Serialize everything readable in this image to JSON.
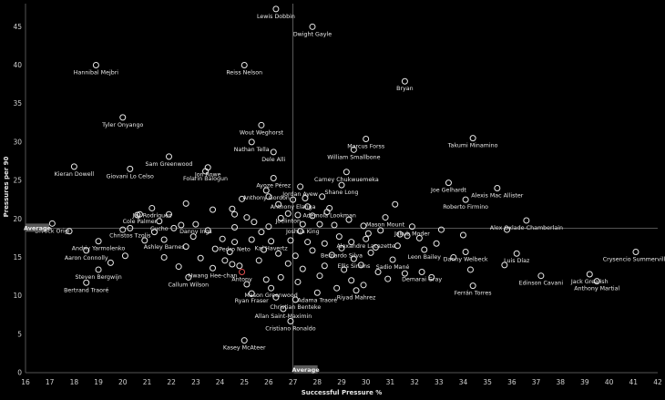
{
  "chart_data": {
    "type": "scatter",
    "title": "",
    "xlabel": "Successful Pressure %",
    "ylabel": "Pressures per 90",
    "xlim": [
      16,
      42
    ],
    "ylim": [
      0,
      48
    ],
    "x_ticks": [
      16,
      17,
      18,
      19,
      20,
      21,
      22,
      23,
      24,
      25,
      26,
      27,
      28,
      29,
      30,
      31,
      32,
      33,
      34,
      35,
      36,
      37,
      38,
      39,
      40,
      41,
      42
    ],
    "y_ticks": [
      0,
      5,
      10,
      15,
      20,
      25,
      30,
      35,
      40,
      45
    ],
    "grid": false,
    "average": {
      "x": 27.0,
      "y": 18.8,
      "x_label": "Average",
      "y_label": "Average"
    },
    "highlight_color": "#e05050",
    "points": [
      {
        "name": "Lewis Dobbin",
        "x": 26.3,
        "y": 47.3,
        "label": true
      },
      {
        "name": "Dwight Gayle",
        "x": 27.8,
        "y": 45.0,
        "label": true
      },
      {
        "name": "Hannibal Mejbri",
        "x": 18.9,
        "y": 40.0,
        "label": true
      },
      {
        "name": "Reiss Nelson",
        "x": 25.0,
        "y": 40.0,
        "label": true
      },
      {
        "name": "Bryan",
        "x": 31.6,
        "y": 37.9,
        "label": true
      },
      {
        "name": "Tyler Onyango",
        "x": 20.0,
        "y": 33.2,
        "label": true
      },
      {
        "name": "Wout Weghorst",
        "x": 25.7,
        "y": 32.2,
        "label": true
      },
      {
        "name": "Marcus Forss",
        "x": 30.0,
        "y": 30.4,
        "label": true
      },
      {
        "name": "Takumi Minamino",
        "x": 34.4,
        "y": 30.5,
        "label": true
      },
      {
        "name": "Nathan Tella",
        "x": 25.3,
        "y": 30.0,
        "label": true
      },
      {
        "name": "William Smallbone",
        "x": 29.5,
        "y": 29.0,
        "label": true
      },
      {
        "name": "Dele Alli",
        "x": 26.2,
        "y": 28.7,
        "label": true
      },
      {
        "name": "Sam Greenwood",
        "x": 21.9,
        "y": 28.1,
        "label": true
      },
      {
        "name": "Kieran Dowell",
        "x": 18.0,
        "y": 26.8,
        "label": true
      },
      {
        "name": "Jon Rowe",
        "x": 23.5,
        "y": 26.7,
        "label": true
      },
      {
        "name": "Giovani Lo Celso",
        "x": 20.3,
        "y": 26.5,
        "label": true
      },
      {
        "name": "Carney Chukwuemeka",
        "x": 29.2,
        "y": 26.1,
        "label": true
      },
      {
        "name": "Folarin Balogun",
        "x": 23.4,
        "y": 26.2,
        "label": true
      },
      {
        "name": "Ayoze Pérez",
        "x": 26.2,
        "y": 25.3,
        "label": true
      },
      {
        "name": "Shane Long",
        "x": 29.0,
        "y": 24.4,
        "label": true
      },
      {
        "name": "Joe Gelhardt",
        "x": 33.4,
        "y": 24.7,
        "label": true
      },
      {
        "name": "Alexis Mac Allister",
        "x": 35.4,
        "y": 24.0,
        "label": true
      },
      {
        "name": "Jordan Ayew",
        "x": 27.3,
        "y": 24.2,
        "label": true
      },
      {
        "name": "Anthony Gordon",
        "x": 25.9,
        "y": 23.7,
        "label": true
      },
      {
        "name": "Anthony Elanga",
        "x": 27.0,
        "y": 22.5,
        "label": true
      },
      {
        "name": "Roberto Firmino",
        "x": 34.1,
        "y": 22.5,
        "label": true
      },
      {
        "name": "Jay Rodríguez",
        "x": 21.2,
        "y": 21.4,
        "label": true
      },
      {
        "name": "Ademola Lookman",
        "x": 28.5,
        "y": 21.4,
        "label": true
      },
      {
        "name": "Cole Palmer",
        "x": 20.7,
        "y": 20.6,
        "label": true
      },
      {
        "name": "Joelinton",
        "x": 26.8,
        "y": 20.7,
        "label": true
      },
      {
        "name": "Mason Mount",
        "x": 30.8,
        "y": 20.2,
        "label": true
      },
      {
        "name": "Cucho",
        "x": 21.5,
        "y": 19.7,
        "label": true
      },
      {
        "name": "Joshua King",
        "x": 27.4,
        "y": 19.3,
        "label": true
      },
      {
        "name": "Jakub Moder",
        "x": 31.9,
        "y": 19.0,
        "label": true
      },
      {
        "name": "Divock Origi",
        "x": 17.1,
        "y": 19.4,
        "label": true
      },
      {
        "name": "Danny Ings",
        "x": 23.0,
        "y": 19.3,
        "label": true
      },
      {
        "name": "Christos Tzolis",
        "x": 20.3,
        "y": 18.8,
        "label": true
      },
      {
        "name": "Alex Oxlade-Chamberlain",
        "x": 36.6,
        "y": 19.8,
        "label": true
      },
      {
        "name": "Alexandre Lacazette",
        "x": 30.0,
        "y": 17.4,
        "label": true
      },
      {
        "name": "Andriy Yarmolenko",
        "x": 19.0,
        "y": 17.1,
        "label": true
      },
      {
        "name": "Ashley Barnes",
        "x": 21.7,
        "y": 17.3,
        "label": true
      },
      {
        "name": "Pedro Neto",
        "x": 24.6,
        "y": 17.0,
        "label": true
      },
      {
        "name": "Kai Havertz",
        "x": 26.1,
        "y": 17.1,
        "label": true
      },
      {
        "name": "Bernardo Silva",
        "x": 29.0,
        "y": 16.2,
        "label": true
      },
      {
        "name": "Leon Bailey",
        "x": 32.4,
        "y": 16.0,
        "label": true
      },
      {
        "name": "Aaron Connolly",
        "x": 18.5,
        "y": 15.9,
        "label": true
      },
      {
        "name": "Danny Welbeck",
        "x": 34.1,
        "y": 15.7,
        "label": true
      },
      {
        "name": "Luis Díaz",
        "x": 36.2,
        "y": 15.5,
        "label": true
      },
      {
        "name": "Crysencio Summerville",
        "x": 41.1,
        "y": 15.7,
        "label": true
      },
      {
        "name": "Ellis Simms",
        "x": 29.5,
        "y": 14.8,
        "label": true
      },
      {
        "name": "Sadio Mané",
        "x": 31.1,
        "y": 14.7,
        "label": true
      },
      {
        "name": "Hwang Hee-chan",
        "x": 23.7,
        "y": 13.6,
        "label": true
      },
      {
        "name": "Antony",
        "x": 24.9,
        "y": 13.1,
        "label": true,
        "highlight": true
      },
      {
        "name": "Steven Bergwijn",
        "x": 19.0,
        "y": 13.4,
        "label": true
      },
      {
        "name": "Jack Grealish",
        "x": 39.2,
        "y": 12.8,
        "label": true
      },
      {
        "name": "Demarai Gray",
        "x": 32.3,
        "y": 13.1,
        "label": true
      },
      {
        "name": "Callum Wilson",
        "x": 22.7,
        "y": 12.4,
        "label": true
      },
      {
        "name": "Edinson Cavani",
        "x": 37.2,
        "y": 12.6,
        "label": true
      },
      {
        "name": "Anthony Martial",
        "x": 39.5,
        "y": 11.9,
        "label": true
      },
      {
        "name": "Bertrand Traoré",
        "x": 18.5,
        "y": 11.7,
        "label": true
      },
      {
        "name": "Ferrán Torres",
        "x": 34.4,
        "y": 11.3,
        "label": true
      },
      {
        "name": "Mason Greenwood",
        "x": 26.1,
        "y": 11.0,
        "label": true
      },
      {
        "name": "Riyad Mahrez",
        "x": 29.6,
        "y": 10.7,
        "label": true
      },
      {
        "name": "Adama Traoré",
        "x": 28.0,
        "y": 10.4,
        "label": true
      },
      {
        "name": "Ryan Fraser",
        "x": 25.3,
        "y": 10.3,
        "label": true
      },
      {
        "name": "Christian Benteke",
        "x": 27.1,
        "y": 9.5,
        "label": true
      },
      {
        "name": "Allan Saint-Maximin",
        "x": 26.6,
        "y": 8.3,
        "label": true
      },
      {
        "name": "Cristiano Ronaldo",
        "x": 26.9,
        "y": 6.7,
        "label": true
      },
      {
        "name": "Kasey McAteer",
        "x": 25.0,
        "y": 4.2,
        "label": true
      },
      {
        "name": "",
        "x": 20.6,
        "y": 20.5,
        "label": false
      },
      {
        "name": "",
        "x": 21.9,
        "y": 20.6,
        "label": false
      },
      {
        "name": "",
        "x": 22.4,
        "y": 19.2,
        "label": false
      },
      {
        "name": "",
        "x": 23.7,
        "y": 21.2,
        "label": false
      },
      {
        "name": "",
        "x": 24.5,
        "y": 21.3,
        "label": false
      },
      {
        "name": "",
        "x": 24.6,
        "y": 20.6,
        "label": false
      },
      {
        "name": "",
        "x": 25.1,
        "y": 20.2,
        "label": false
      },
      {
        "name": "",
        "x": 25.4,
        "y": 19.6,
        "label": false
      },
      {
        "name": "",
        "x": 25.7,
        "y": 18.3,
        "label": false
      },
      {
        "name": "",
        "x": 26.0,
        "y": 19.0,
        "label": false
      },
      {
        "name": "",
        "x": 26.4,
        "y": 21.9,
        "label": false
      },
      {
        "name": "",
        "x": 26.5,
        "y": 20.1,
        "label": false
      },
      {
        "name": "",
        "x": 27.2,
        "y": 20.5,
        "label": false
      },
      {
        "name": "",
        "x": 27.6,
        "y": 21.6,
        "label": false
      },
      {
        "name": "",
        "x": 27.8,
        "y": 20.4,
        "label": false
      },
      {
        "name": "",
        "x": 28.1,
        "y": 19.3,
        "label": false
      },
      {
        "name": "",
        "x": 28.4,
        "y": 20.9,
        "label": false
      },
      {
        "name": "",
        "x": 28.7,
        "y": 19.2,
        "label": false
      },
      {
        "name": "",
        "x": 29.3,
        "y": 19.9,
        "label": false
      },
      {
        "name": "",
        "x": 29.9,
        "y": 19.1,
        "label": false
      },
      {
        "name": "",
        "x": 30.1,
        "y": 18.1,
        "label": false
      },
      {
        "name": "",
        "x": 30.6,
        "y": 18.5,
        "label": false
      },
      {
        "name": "",
        "x": 31.4,
        "y": 18.0,
        "label": false
      },
      {
        "name": "",
        "x": 31.7,
        "y": 17.8,
        "label": false
      },
      {
        "name": "",
        "x": 32.2,
        "y": 17.5,
        "label": false
      },
      {
        "name": "",
        "x": 33.1,
        "y": 18.6,
        "label": false
      },
      {
        "name": "",
        "x": 34.0,
        "y": 17.9,
        "label": false
      },
      {
        "name": "",
        "x": 35.8,
        "y": 18.6,
        "label": false
      },
      {
        "name": "",
        "x": 17.8,
        "y": 18.4,
        "label": false
      },
      {
        "name": "",
        "x": 20.0,
        "y": 18.6,
        "label": false
      },
      {
        "name": "",
        "x": 21.3,
        "y": 18.3,
        "label": false
      },
      {
        "name": "",
        "x": 22.1,
        "y": 18.8,
        "label": false
      },
      {
        "name": "",
        "x": 22.9,
        "y": 17.7,
        "label": false
      },
      {
        "name": "",
        "x": 23.5,
        "y": 18.5,
        "label": false
      },
      {
        "name": "",
        "x": 24.1,
        "y": 17.4,
        "label": false
      },
      {
        "name": "",
        "x": 24.6,
        "y": 18.9,
        "label": false
      },
      {
        "name": "",
        "x": 25.3,
        "y": 17.3,
        "label": false
      },
      {
        "name": "",
        "x": 26.9,
        "y": 17.2,
        "label": false
      },
      {
        "name": "",
        "x": 27.3,
        "y": 18.4,
        "label": false
      },
      {
        "name": "",
        "x": 27.6,
        "y": 17.0,
        "label": false
      },
      {
        "name": "",
        "x": 28.3,
        "y": 16.8,
        "label": false
      },
      {
        "name": "",
        "x": 28.9,
        "y": 17.7,
        "label": false
      },
      {
        "name": "",
        "x": 29.4,
        "y": 17.0,
        "label": false
      },
      {
        "name": "",
        "x": 30.4,
        "y": 16.3,
        "label": false
      },
      {
        "name": "",
        "x": 20.9,
        "y": 17.2,
        "label": false
      },
      {
        "name": "",
        "x": 22.6,
        "y": 16.4,
        "label": false
      },
      {
        "name": "",
        "x": 23.8,
        "y": 16.1,
        "label": false
      },
      {
        "name": "",
        "x": 24.4,
        "y": 15.7,
        "label": false
      },
      {
        "name": "",
        "x": 25.8,
        "y": 16.0,
        "label": false
      },
      {
        "name": "",
        "x": 26.4,
        "y": 15.5,
        "label": false
      },
      {
        "name": "",
        "x": 27.1,
        "y": 15.2,
        "label": false
      },
      {
        "name": "",
        "x": 27.8,
        "y": 15.9,
        "label": false
      },
      {
        "name": "",
        "x": 28.6,
        "y": 15.3,
        "label": false
      },
      {
        "name": "",
        "x": 21.7,
        "y": 15.0,
        "label": false
      },
      {
        "name": "",
        "x": 24.2,
        "y": 14.6,
        "label": false
      },
      {
        "name": "",
        "x": 24.5,
        "y": 14.1,
        "label": false
      },
      {
        "name": "",
        "x": 24.8,
        "y": 13.9,
        "label": false
      },
      {
        "name": "",
        "x": 25.6,
        "y": 14.6,
        "label": false
      },
      {
        "name": "",
        "x": 26.8,
        "y": 14.2,
        "label": false
      },
      {
        "name": "",
        "x": 27.4,
        "y": 13.5,
        "label": false
      },
      {
        "name": "",
        "x": 28.3,
        "y": 13.9,
        "label": false
      },
      {
        "name": "",
        "x": 29.1,
        "y": 13.4,
        "label": false
      },
      {
        "name": "",
        "x": 29.8,
        "y": 14.0,
        "label": false
      },
      {
        "name": "",
        "x": 30.5,
        "y": 13.1,
        "label": false
      },
      {
        "name": "",
        "x": 30.9,
        "y": 12.2,
        "label": false
      },
      {
        "name": "",
        "x": 29.4,
        "y": 12.0,
        "label": false
      },
      {
        "name": "",
        "x": 28.1,
        "y": 12.6,
        "label": false
      },
      {
        "name": "",
        "x": 26.5,
        "y": 12.4,
        "label": false
      },
      {
        "name": "",
        "x": 25.9,
        "y": 12.1,
        "label": false
      },
      {
        "name": "",
        "x": 25.1,
        "y": 11.5,
        "label": false
      },
      {
        "name": "",
        "x": 27.2,
        "y": 11.8,
        "label": false
      },
      {
        "name": "",
        "x": 29.9,
        "y": 11.4,
        "label": false
      },
      {
        "name": "",
        "x": 32.7,
        "y": 12.4,
        "label": false
      },
      {
        "name": "",
        "x": 34.3,
        "y": 13.4,
        "label": false
      },
      {
        "name": "",
        "x": 35.7,
        "y": 14.0,
        "label": false
      },
      {
        "name": "",
        "x": 31.6,
        "y": 12.9,
        "label": false
      },
      {
        "name": "",
        "x": 28.8,
        "y": 11.0,
        "label": false
      },
      {
        "name": "",
        "x": 26.3,
        "y": 9.8,
        "label": false
      },
      {
        "name": "",
        "x": 20.1,
        "y": 15.2,
        "label": false
      },
      {
        "name": "",
        "x": 19.5,
        "y": 14.3,
        "label": false
      },
      {
        "name": "",
        "x": 22.3,
        "y": 13.8,
        "label": false
      },
      {
        "name": "",
        "x": 23.2,
        "y": 14.9,
        "label": false
      },
      {
        "name": "",
        "x": 30.2,
        "y": 15.6,
        "label": false
      },
      {
        "name": "",
        "x": 31.3,
        "y": 16.5,
        "label": false
      },
      {
        "name": "",
        "x": 32.9,
        "y": 16.8,
        "label": false
      },
      {
        "name": "",
        "x": 33.6,
        "y": 15.0,
        "label": false
      },
      {
        "name": "",
        "x": 26.0,
        "y": 22.9,
        "label": false
      },
      {
        "name": "",
        "x": 24.9,
        "y": 22.6,
        "label": false
      },
      {
        "name": "",
        "x": 27.5,
        "y": 22.7,
        "label": false
      },
      {
        "name": "",
        "x": 28.2,
        "y": 22.9,
        "label": false
      },
      {
        "name": "",
        "x": 22.6,
        "y": 22.0,
        "label": false
      },
      {
        "name": "",
        "x": 31.2,
        "y": 21.9,
        "label": false
      }
    ]
  }
}
